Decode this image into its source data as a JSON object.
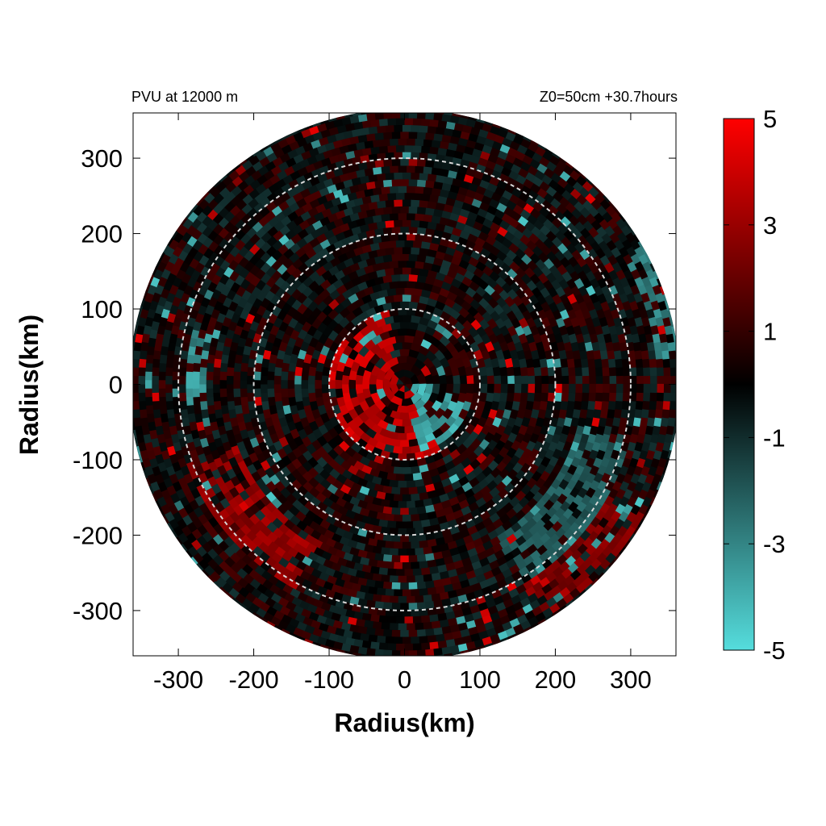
{
  "chart_data": {
    "type": "heatmap",
    "title_left": "PVU at 12000 m",
    "title_right": "Z0=50cm  +30.7hours",
    "xlabel": "Radius(km)",
    "ylabel": "Radius(km)",
    "xlim": [
      -360,
      360
    ],
    "ylim": [
      -360,
      360
    ],
    "x_ticks": [
      -300,
      -200,
      -100,
      0,
      100,
      200,
      300
    ],
    "y_ticks": [
      300,
      200,
      100,
      0,
      -100,
      -200,
      -300
    ],
    "domain_radius": 365,
    "reference_circles_km": [
      100,
      200,
      300
    ],
    "colorbar": {
      "min": -5,
      "max": 5,
      "ticks": [
        5,
        3,
        1,
        -1,
        -3,
        -5
      ],
      "colors": {
        "high": "#ff0000",
        "mid": "#000000",
        "low": "#55dddd"
      }
    },
    "features": [
      {
        "kind": "positive-core",
        "r": [
          0,
          95
        ],
        "theta": [
          100,
          300
        ],
        "value": 4.5
      },
      {
        "kind": "negative-core",
        "r": [
          10,
          85
        ],
        "theta": [
          280,
          340
        ],
        "value": -4.5
      },
      {
        "kind": "negative-patch",
        "r": [
          60,
          80
        ],
        "theta": [
          115,
          135
        ],
        "value": -4
      },
      {
        "kind": "negative-patch",
        "r": [
          260,
          285
        ],
        "theta": [
          165,
          185
        ],
        "value": -4
      },
      {
        "kind": "negative-patch",
        "r": [
          330,
          365
        ],
        "theta": [
          5,
          30
        ],
        "value": -3.5
      },
      {
        "kind": "positive-band",
        "r": [
          230,
          300
        ],
        "theta": [
          200,
          240
        ],
        "value": 3.5
      },
      {
        "kind": "positive-band",
        "r": [
          300,
          360
        ],
        "theta": [
          300,
          330
        ],
        "value": 3
      },
      {
        "kind": "negative-band",
        "r": [
          230,
          300
        ],
        "theta": [
          300,
          345
        ],
        "value": -2.5
      }
    ]
  }
}
